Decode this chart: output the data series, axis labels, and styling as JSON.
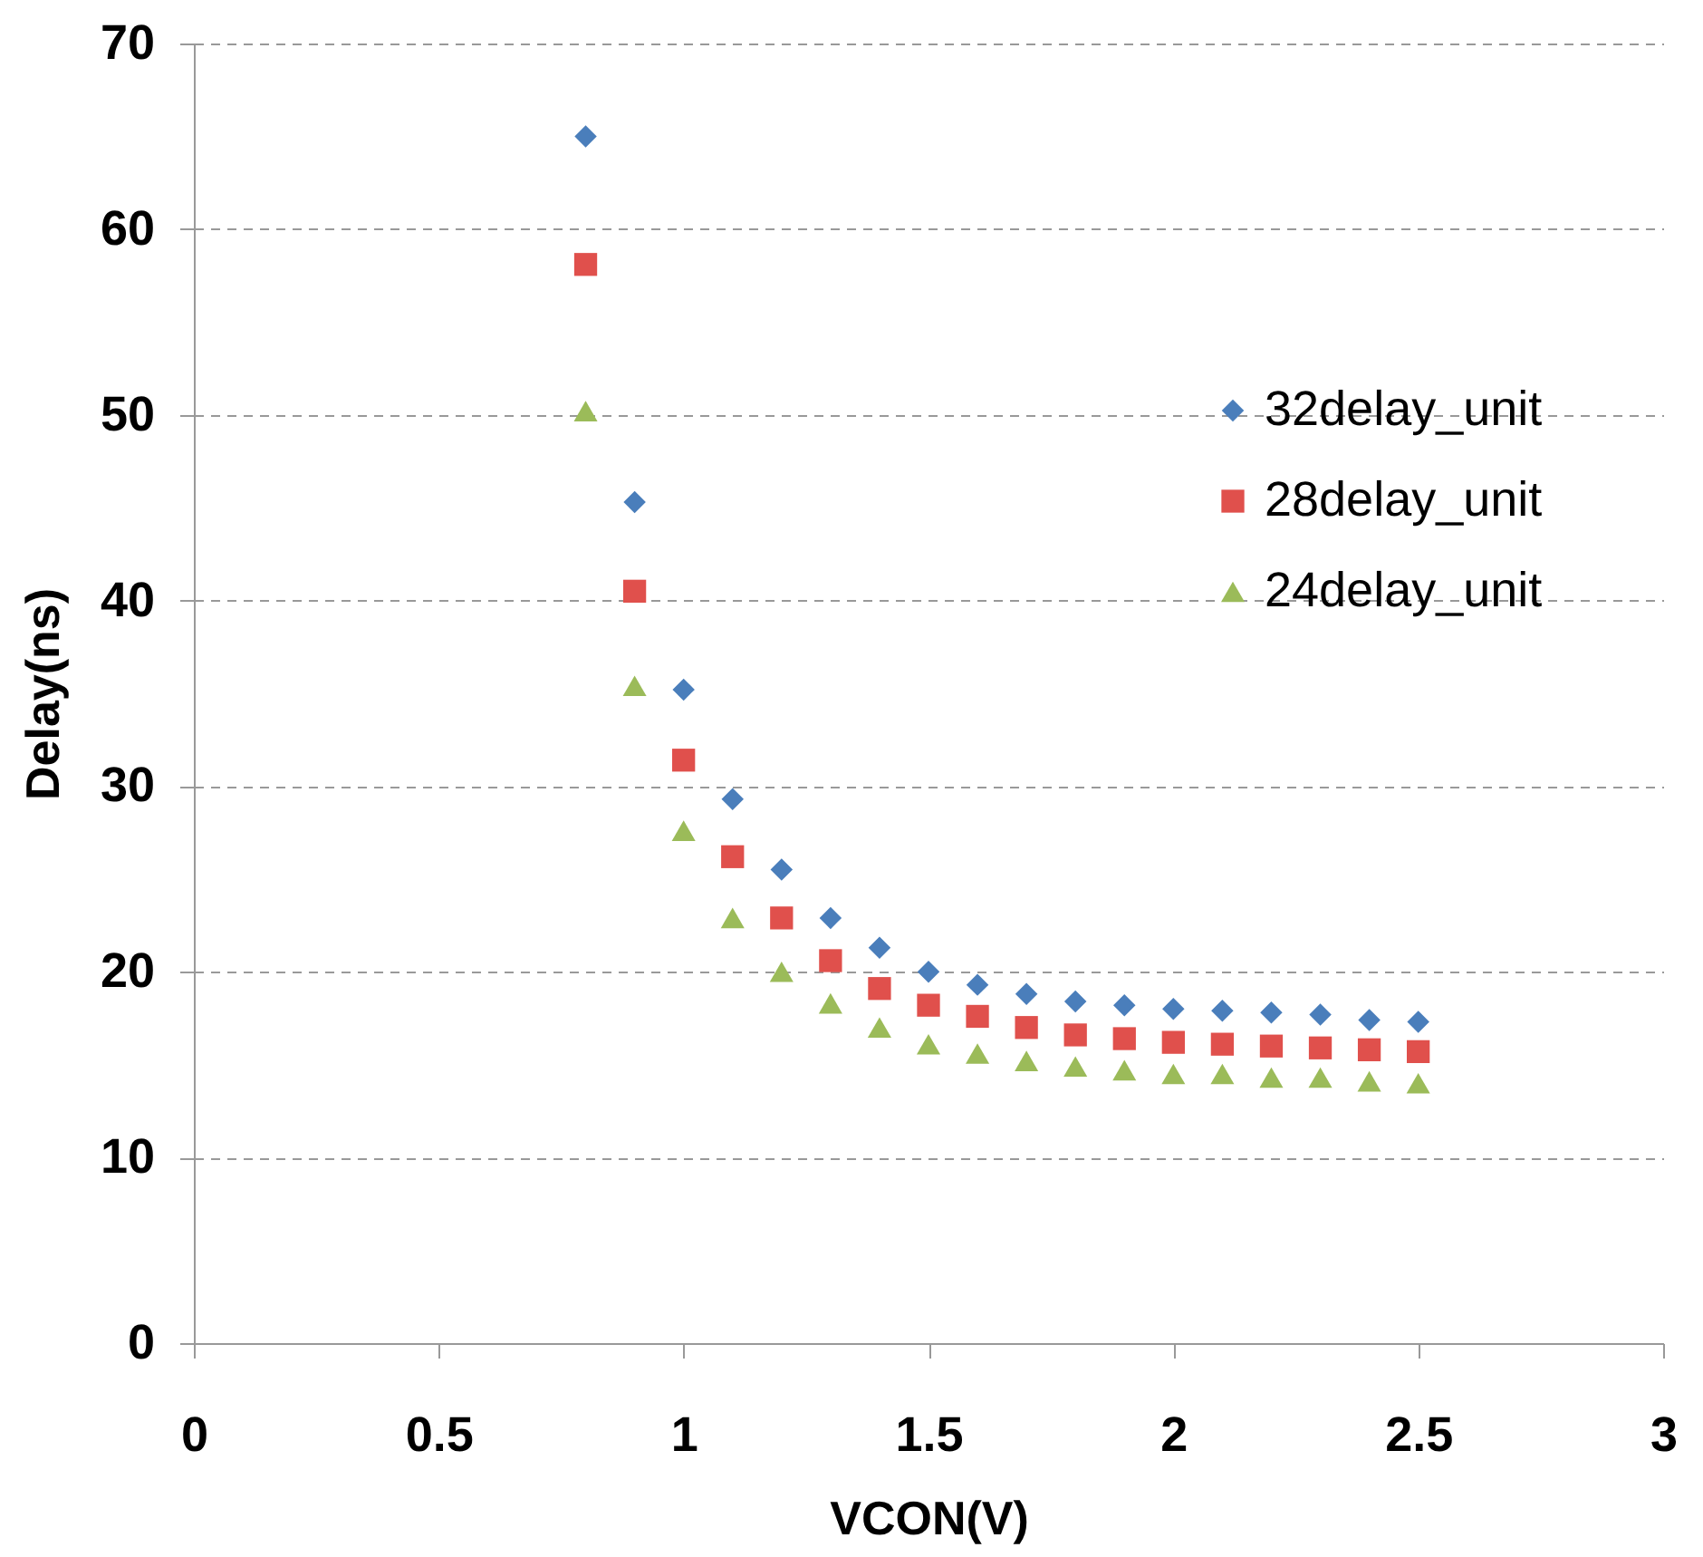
{
  "chart_data": {
    "type": "scatter",
    "xlabel": "VCON(V)",
    "ylabel": "Delay(ns)",
    "x": [
      0.8,
      0.9,
      1.0,
      1.1,
      1.2,
      1.3,
      1.4,
      1.5,
      1.6,
      1.7,
      1.8,
      1.9,
      2.0,
      2.1,
      2.2,
      2.3,
      2.4,
      2.5
    ],
    "series": [
      {
        "name": "32delay_unit",
        "color": "#4a7ebb",
        "marker": "diamond",
        "values": [
          65,
          45.3,
          35.2,
          29.3,
          25.5,
          22.9,
          21.3,
          20.0,
          19.3,
          18.8,
          18.4,
          18.2,
          18.0,
          17.9,
          17.8,
          17.7,
          17.4,
          17.3
        ]
      },
      {
        "name": "28delay_unit",
        "color": "#e0504c",
        "marker": "square",
        "values": [
          58.1,
          40.5,
          31.4,
          26.2,
          22.9,
          20.6,
          19.1,
          18.2,
          17.6,
          17.0,
          16.6,
          16.4,
          16.2,
          16.1,
          16.0,
          15.9,
          15.8,
          15.7
        ]
      },
      {
        "name": "24delay_unit",
        "color": "#9bbb59",
        "marker": "triangle",
        "values": [
          50.2,
          35.4,
          27.6,
          22.9,
          20.0,
          18.3,
          17.0,
          16.1,
          15.6,
          15.2,
          14.9,
          14.7,
          14.5,
          14.5,
          14.3,
          14.3,
          14.1,
          14.0
        ]
      }
    ],
    "xlim": [
      0,
      3
    ],
    "xticks": [
      0,
      0.5,
      1,
      1.5,
      2,
      2.5,
      3
    ],
    "ylim": [
      0,
      70
    ],
    "yticks": [
      0,
      10,
      20,
      30,
      40,
      50,
      60,
      70
    ],
    "grid": "y",
    "legend": "right"
  }
}
